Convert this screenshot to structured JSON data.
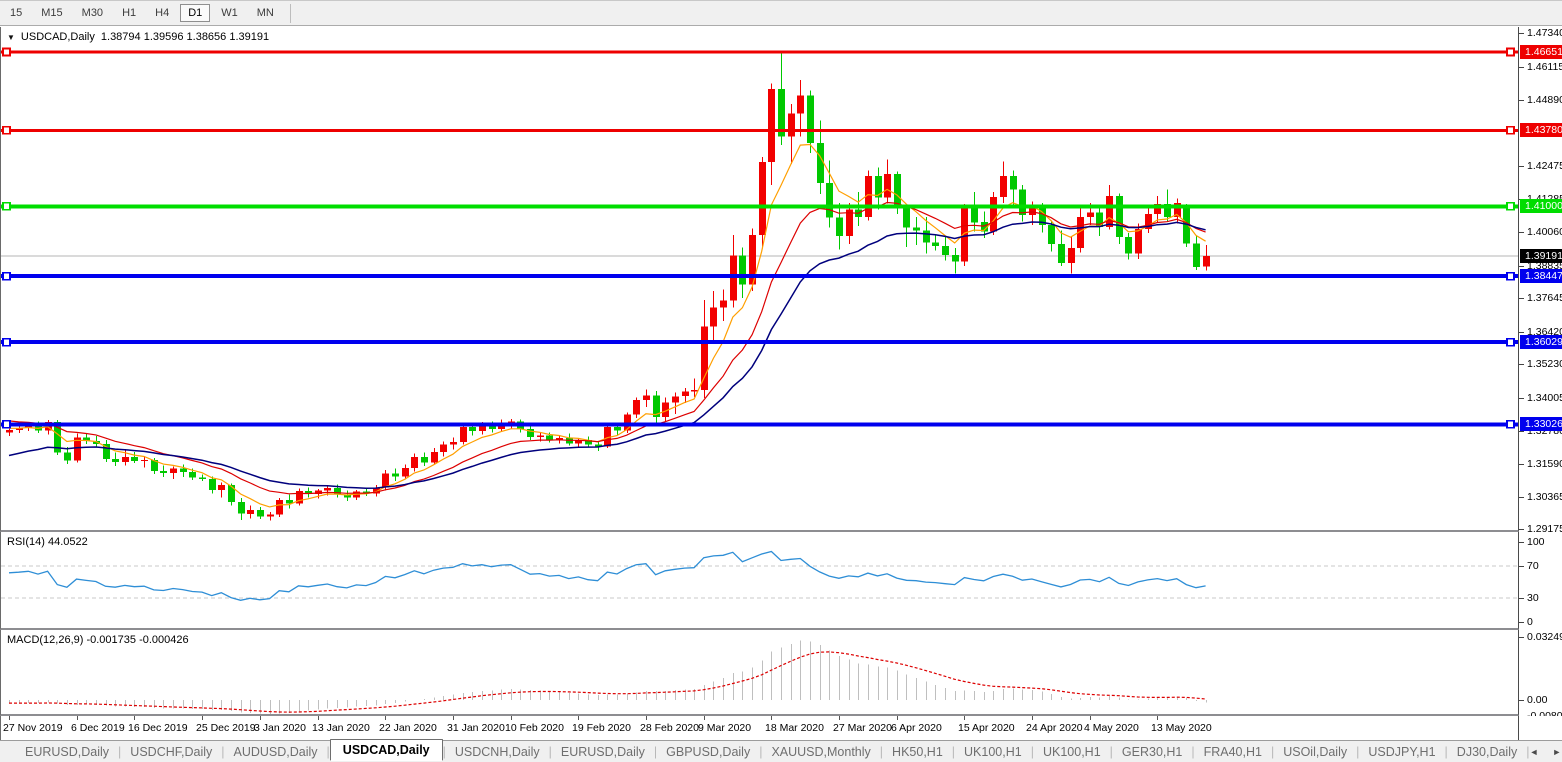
{
  "toolbar": {
    "items": [
      "15",
      "M15",
      "M30",
      "H1",
      "H4",
      "D1",
      "W1",
      "MN"
    ],
    "active": "D1"
  },
  "chart": {
    "title_symbol": "USDCAD,Daily",
    "title_ohlc": "1.38794 1.39596 1.38656 1.39191",
    "rsi_label": "RSI(14) 44.0522",
    "macd_label": "MACD(12,26,9) -0.001735 -0.000426"
  },
  "colors": {
    "bull": "#f20000",
    "bear": "#00c800",
    "ma_fast": "#ff9f00",
    "ma_mid": "#dd0000",
    "ma_slow": "#00007d",
    "rsi_line": "#2e8ed6",
    "macd_hist": "#bfbfbf",
    "macd_signal": "#dd0000",
    "hline_red": "#ee0000",
    "hline_green": "#00dd00",
    "hline_blue": "#0000ee",
    "current_price_line": "#b4b4b4",
    "current_price_flag_bg": "#000000"
  },
  "hlines": [
    {
      "price": 1.46651,
      "label": "1.46651",
      "color": "#ee0000",
      "width": 3
    },
    {
      "price": 1.4378,
      "label": "1.43780",
      "color": "#ee0000",
      "width": 3
    },
    {
      "price": 1.41,
      "label": "1.41000",
      "color": "#00dd00",
      "width": 4
    },
    {
      "price": 1.38447,
      "label": "1.38447",
      "color": "#0000ee",
      "width": 4
    },
    {
      "price": 1.36029,
      "label": "1.36029",
      "color": "#0000ee",
      "width": 4
    },
    {
      "price": 1.33026,
      "label": "1.33026",
      "color": "#0000ee",
      "width": 4
    }
  ],
  "current_price": {
    "value": 1.39191,
    "label": "1.39191"
  },
  "axis": {
    "price_ticks": [
      "1.47340",
      "1.46115",
      "1.44890",
      "1.42475",
      "1.41285",
      "1.40060",
      "1.38835",
      "1.37645",
      "1.36420",
      "1.35230",
      "1.34005",
      "1.32780",
      "1.31590",
      "1.30365",
      "1.29175"
    ],
    "rsi_ticks": [
      {
        "v": 100,
        "label": "100",
        "dash": false
      },
      {
        "v": 70,
        "label": "70",
        "dash": true
      },
      {
        "v": 30,
        "label": "30",
        "dash": true
      },
      {
        "v": 0,
        "label": "0",
        "dash": false
      }
    ],
    "macd_ticks": [
      {
        "v": 0.032493,
        "label": "0.032493"
      },
      {
        "v": 0,
        "label": "0.00"
      },
      {
        "v": -0.008086,
        "label": "-0.008086"
      }
    ],
    "date_ticks": [
      "27 Nov 2019",
      "6 Dec 2019",
      "16 Dec 2019",
      "25 Dec 2019",
      "3 Jan 2020",
      "13 Jan 2020",
      "22 Jan 2020",
      "31 Jan 2020",
      "10 Feb 2020",
      "19 Feb 2020",
      "28 Feb 2020",
      "9 Mar 2020",
      "18 Mar 2020",
      "27 Mar 2020",
      "6 Apr 2020",
      "15 Apr 2020",
      "24 Apr 2020",
      "4 May 2020",
      "13 May 2020"
    ]
  },
  "tabs": {
    "items": [
      "EURUSD,Daily",
      "USDCHF,Daily",
      "AUDUSD,Daily",
      "USDCAD,Daily",
      "USDCNH,Daily",
      "EURUSD,Daily",
      "GBPUSD,Daily",
      "XAUUSD,Monthly",
      "HK50,H1",
      "UK100,H1",
      "UK100,H1",
      "GER30,H1",
      "FRA40,H1",
      "USOil,Daily",
      "USDJPY,H1",
      "DJ30,Daily"
    ],
    "active_index": 3,
    "left_arrow": "◄",
    "right_arrow": "►"
  },
  "chart_data": {
    "type": "candlestick",
    "symbol": "USDCAD",
    "timeframe": "Daily",
    "title": "USDCAD,Daily",
    "current_bar": {
      "open": 1.38794,
      "high": 1.39596,
      "low": 1.38656,
      "close": 1.39191
    },
    "price_axis_range": [
      1.2905,
      1.475
    ],
    "indicators": {
      "rsi": {
        "period": 14,
        "value": 44.0522,
        "levels": [
          30,
          70
        ]
      },
      "macd": {
        "fast": 12,
        "slow": 26,
        "signal": 9,
        "value": -0.001735,
        "signal_value": -0.000426
      }
    },
    "moving_averages": [
      {
        "name": "fast",
        "period": 6,
        "init": 1.329,
        "color": "#ff9f00"
      },
      {
        "name": "mid",
        "period": 14,
        "init": 1.332,
        "color": "#dd0000"
      },
      {
        "name": "slow",
        "period": 24,
        "init": 1.318,
        "color": "#00007d"
      }
    ],
    "columns": [
      "date",
      "open",
      "high",
      "low",
      "close"
    ],
    "ohlc": [
      [
        "27 Nov 2019",
        1.3272,
        1.3293,
        1.326,
        1.3282
      ],
      [
        "28 Nov 2019",
        1.3282,
        1.3297,
        1.327,
        1.3288
      ],
      [
        "29 Nov 2019",
        1.3288,
        1.3306,
        1.3278,
        1.3298
      ],
      [
        "2 Dec 2019",
        1.3298,
        1.3312,
        1.327,
        1.328
      ],
      [
        "3 Dec 2019",
        1.328,
        1.3319,
        1.3265,
        1.331
      ],
      [
        "4 Dec 2019",
        1.331,
        1.3318,
        1.319,
        1.32
      ],
      [
        "5 Dec 2019",
        1.32,
        1.322,
        1.3158,
        1.317
      ],
      [
        "6 Dec 2019",
        1.317,
        1.3268,
        1.3162,
        1.3255
      ],
      [
        "9 Dec 2019",
        1.3255,
        1.327,
        1.323,
        1.3242
      ],
      [
        "10 Dec 2019",
        1.3242,
        1.326,
        1.3222,
        1.323
      ],
      [
        "11 Dec 2019",
        1.323,
        1.3245,
        1.3165,
        1.3176
      ],
      [
        "12 Dec 2019",
        1.3176,
        1.32,
        1.315,
        1.3165
      ],
      [
        "13 Dec 2019",
        1.3165,
        1.3212,
        1.3151,
        1.3182
      ],
      [
        "16 Dec 2019",
        1.3182,
        1.3202,
        1.316,
        1.3168
      ],
      [
        "17 Dec 2019",
        1.3168,
        1.3186,
        1.3145,
        1.3172
      ],
      [
        "18 Dec 2019",
        1.3172,
        1.318,
        1.312,
        1.3132
      ],
      [
        "19 Dec 2019",
        1.3132,
        1.3152,
        1.311,
        1.3125
      ],
      [
        "20 Dec 2019",
        1.3125,
        1.3148,
        1.3103,
        1.314
      ],
      [
        "23 Dec 2019",
        1.314,
        1.3155,
        1.311,
        1.3128
      ],
      [
        "24 Dec 2019",
        1.3128,
        1.314,
        1.3098,
        1.3108
      ],
      [
        "25 Dec 2019",
        1.3108,
        1.3118,
        1.3095,
        1.3102
      ],
      [
        "26 Dec 2019",
        1.3102,
        1.3112,
        1.305,
        1.3062
      ],
      [
        "27 Dec 2019",
        1.3062,
        1.309,
        1.3035,
        1.308
      ],
      [
        "30 Dec 2019",
        1.308,
        1.3085,
        1.3005,
        1.3018
      ],
      [
        "31 Dec 2019",
        1.3018,
        1.3032,
        1.2952,
        1.2975
      ],
      [
        "2 Jan 2020",
        1.2975,
        1.3005,
        1.2958,
        1.2988
      ],
      [
        "3 Jan 2020",
        1.2988,
        1.3,
        1.2955,
        1.2965
      ],
      [
        "6 Jan 2020",
        1.2965,
        1.2982,
        1.295,
        1.2972
      ],
      [
        "7 Jan 2020",
        1.2972,
        1.3032,
        1.2963,
        1.3025
      ],
      [
        "8 Jan 2020",
        1.3025,
        1.3045,
        1.2995,
        1.3012
      ],
      [
        "9 Jan 2020",
        1.3012,
        1.3068,
        1.3005,
        1.3058
      ],
      [
        "10 Jan 2020",
        1.3058,
        1.3072,
        1.3035,
        1.3048
      ],
      [
        "13 Jan 2020",
        1.3048,
        1.3065,
        1.303,
        1.306
      ],
      [
        "14 Jan 2020",
        1.306,
        1.3078,
        1.3042,
        1.307
      ],
      [
        "15 Jan 2020",
        1.307,
        1.3082,
        1.3035,
        1.3046
      ],
      [
        "16 Jan 2020",
        1.3046,
        1.306,
        1.3022,
        1.3035
      ],
      [
        "17 Jan 2020",
        1.3035,
        1.3062,
        1.3025,
        1.3056
      ],
      [
        "20 Jan 2020",
        1.3056,
        1.307,
        1.304,
        1.305
      ],
      [
        "21 Jan 2020",
        1.305,
        1.308,
        1.3038,
        1.3072
      ],
      [
        "22 Jan 2020",
        1.3072,
        1.3135,
        1.306,
        1.3122
      ],
      [
        "23 Jan 2020",
        1.3122,
        1.314,
        1.3095,
        1.3112
      ],
      [
        "24 Jan 2020",
        1.3112,
        1.3155,
        1.31,
        1.3142
      ],
      [
        "27 Jan 2020",
        1.3142,
        1.3195,
        1.313,
        1.3182
      ],
      [
        "28 Jan 2020",
        1.3182,
        1.32,
        1.315,
        1.3162
      ],
      [
        "29 Jan 2020",
        1.3162,
        1.3215,
        1.3155,
        1.3202
      ],
      [
        "30 Jan 2020",
        1.3202,
        1.324,
        1.3185,
        1.3228
      ],
      [
        "31 Jan 2020",
        1.3228,
        1.3255,
        1.321,
        1.3238
      ],
      [
        "3 Feb 2020",
        1.3238,
        1.3302,
        1.3228,
        1.3292
      ],
      [
        "4 Feb 2020",
        1.3292,
        1.3305,
        1.3262,
        1.3278
      ],
      [
        "5 Feb 2020",
        1.3278,
        1.331,
        1.3265,
        1.3297
      ],
      [
        "6 Feb 2020",
        1.3297,
        1.3312,
        1.3272,
        1.3285
      ],
      [
        "7 Feb 2020",
        1.3285,
        1.332,
        1.3275,
        1.3307
      ],
      [
        "10 Feb 2020",
        1.3307,
        1.3322,
        1.3288,
        1.3312
      ],
      [
        "11 Feb 2020",
        1.3312,
        1.332,
        1.3272,
        1.3286
      ],
      [
        "12 Feb 2020",
        1.3286,
        1.3298,
        1.3245,
        1.3256
      ],
      [
        "13 Feb 2020",
        1.3256,
        1.3275,
        1.324,
        1.3262
      ],
      [
        "14 Feb 2020",
        1.3262,
        1.3272,
        1.3235,
        1.3246
      ],
      [
        "17 Feb 2020",
        1.3246,
        1.3262,
        1.3232,
        1.3252
      ],
      [
        "18 Feb 2020",
        1.3252,
        1.3268,
        1.3225,
        1.3232
      ],
      [
        "19 Feb 2020",
        1.3232,
        1.3252,
        1.322,
        1.3245
      ],
      [
        "20 Feb 2020",
        1.3245,
        1.3258,
        1.3222,
        1.3228
      ],
      [
        "21 Feb 2020",
        1.3228,
        1.324,
        1.3205,
        1.3222
      ],
      [
        "24 Feb 2020",
        1.3222,
        1.33,
        1.3215,
        1.3292
      ],
      [
        "25 Feb 2020",
        1.3292,
        1.3305,
        1.3262,
        1.328
      ],
      [
        "26 Feb 2020",
        1.328,
        1.3345,
        1.327,
        1.3338
      ],
      [
        "27 Feb 2020",
        1.3338,
        1.34,
        1.3325,
        1.3392
      ],
      [
        "28 Feb 2020",
        1.3392,
        1.343,
        1.3365,
        1.3408
      ],
      [
        "2 Mar 2020",
        1.3408,
        1.3425,
        1.3305,
        1.333
      ],
      [
        "3 Mar 2020",
        1.333,
        1.34,
        1.3315,
        1.3382
      ],
      [
        "4 Mar 2020",
        1.3382,
        1.3418,
        1.334,
        1.3405
      ],
      [
        "5 Mar 2020",
        1.3405,
        1.3435,
        1.338,
        1.3422
      ],
      [
        "6 Mar 2020",
        1.3422,
        1.347,
        1.3402,
        1.3428
      ],
      [
        "9 Mar 2020",
        1.3428,
        1.3758,
        1.3398,
        1.366
      ],
      [
        "10 Mar 2020",
        1.366,
        1.379,
        1.36,
        1.373
      ],
      [
        "11 Mar 2020",
        1.373,
        1.3795,
        1.368,
        1.3755
      ],
      [
        "12 Mar 2020",
        1.3755,
        1.3995,
        1.373,
        1.392
      ],
      [
        "13 Mar 2020",
        1.392,
        1.395,
        1.3765,
        1.3815
      ],
      [
        "16 Mar 2020",
        1.3815,
        1.402,
        1.379,
        1.3995
      ],
      [
        "17 Mar 2020",
        1.3995,
        1.428,
        1.3945,
        1.4262
      ],
      [
        "18 Mar 2020",
        1.4262,
        1.455,
        1.4178,
        1.453
      ],
      [
        "19 Mar 2020",
        1.453,
        1.4668,
        1.4325,
        1.4355
      ],
      [
        "20 Mar 2020",
        1.4355,
        1.4475,
        1.4255,
        1.444
      ],
      [
        "23 Mar 2020",
        1.444,
        1.4562,
        1.4355,
        1.4505
      ],
      [
        "24 Mar 2020",
        1.4505,
        1.4525,
        1.4295,
        1.4332
      ],
      [
        "25 Mar 2020",
        1.4332,
        1.4415,
        1.4145,
        1.4185
      ],
      [
        "26 Mar 2020",
        1.4185,
        1.4268,
        1.4022,
        1.406
      ],
      [
        "27 Mar 2020",
        1.406,
        1.4112,
        1.3942,
        1.3992
      ],
      [
        "30 Mar 2020",
        1.3992,
        1.4112,
        1.3962,
        1.4088
      ],
      [
        "31 Mar 2020",
        1.4088,
        1.4152,
        1.4028,
        1.4062
      ],
      [
        "1 Apr 2020",
        1.4062,
        1.4232,
        1.4048,
        1.4212
      ],
      [
        "2 Apr 2020",
        1.4212,
        1.4242,
        1.4088,
        1.4132
      ],
      [
        "3 Apr 2020",
        1.4132,
        1.4272,
        1.411,
        1.4218
      ],
      [
        "6 Apr 2020",
        1.4218,
        1.4228,
        1.4072,
        1.4092
      ],
      [
        "7 Apr 2020",
        1.4092,
        1.4102,
        1.3952,
        1.4022
      ],
      [
        "8 Apr 2020",
        1.4022,
        1.4062,
        1.3958,
        1.4012
      ],
      [
        "9 Apr 2020",
        1.4012,
        1.4062,
        1.3928,
        1.3968
      ],
      [
        "10 Apr 2020",
        1.3968,
        1.3998,
        1.3938,
        1.3955
      ],
      [
        "13 Apr 2020",
        1.3955,
        1.3988,
        1.3902,
        1.3922
      ],
      [
        "14 Apr 2020",
        1.3922,
        1.3948,
        1.3855,
        1.3898
      ],
      [
        "15 Apr 2020",
        1.3898,
        1.4108,
        1.3882,
        1.4092
      ],
      [
        "16 Apr 2020",
        1.4092,
        1.4152,
        1.4008,
        1.4042
      ],
      [
        "17 Apr 2020",
        1.4042,
        1.4082,
        1.3985,
        1.4008
      ],
      [
        "20 Apr 2020",
        1.4008,
        1.4152,
        1.3995,
        1.4135
      ],
      [
        "21 Apr 2020",
        1.4135,
        1.4265,
        1.4112,
        1.4212
      ],
      [
        "22 Apr 2020",
        1.4212,
        1.4232,
        1.4105,
        1.4162
      ],
      [
        "23 Apr 2020",
        1.4162,
        1.4178,
        1.4045,
        1.4068
      ],
      [
        "24 Apr 2020",
        1.4068,
        1.4118,
        1.4032,
        1.4102
      ],
      [
        "27 Apr 2020",
        1.4102,
        1.4112,
        1.4005,
        1.4032
      ],
      [
        "28 Apr 2020",
        1.4032,
        1.4048,
        1.3935,
        1.3962
      ],
      [
        "29 Apr 2020",
        1.3962,
        1.4012,
        1.3882,
        1.3892
      ],
      [
        "30 Apr 2020",
        1.3892,
        1.3988,
        1.3855,
        1.3948
      ],
      [
        "1 May 2020",
        1.3948,
        1.4092,
        1.3932,
        1.4062
      ],
      [
        "4 May 2020",
        1.4062,
        1.4112,
        1.4032,
        1.4078
      ],
      [
        "5 May 2020",
        1.4078,
        1.4092,
        1.3992,
        1.4025
      ],
      [
        "6 May 2020",
        1.4025,
        1.4178,
        1.4015,
        1.4138
      ],
      [
        "7 May 2020",
        1.4138,
        1.4148,
        1.3962,
        1.3988
      ],
      [
        "8 May 2020",
        1.3988,
        1.4002,
        1.3905,
        1.3928
      ],
      [
        "11 May 2020",
        1.3928,
        1.4038,
        1.3908,
        1.4018
      ],
      [
        "12 May 2020",
        1.4018,
        1.4098,
        1.4002,
        1.4072
      ],
      [
        "13 May 2020",
        1.4072,
        1.4138,
        1.4042,
        1.4108
      ],
      [
        "14 May 2020",
        1.4108,
        1.4162,
        1.4045,
        1.4062
      ],
      [
        "15 May 2020",
        1.4062,
        1.4128,
        1.4038,
        1.4112
      ],
      [
        "18 May 2020",
        1.4095,
        1.4108,
        1.3952,
        1.3965
      ],
      [
        "19 May 2020",
        1.3965,
        1.3992,
        1.3868,
        1.3878
      ],
      [
        "20 May 2020",
        1.38794,
        1.39596,
        1.38656,
        1.39191
      ]
    ]
  }
}
